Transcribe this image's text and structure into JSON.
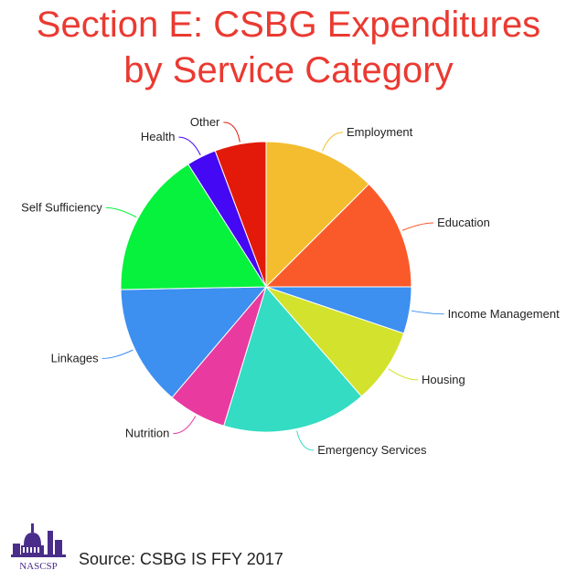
{
  "title_line1": "Section E: CSBG Expenditures",
  "title_line2": "by Service Category",
  "source": "Source: CSBG IS FFY 2017",
  "logo_text": "NASCSP",
  "chart_data": {
    "type": "pie",
    "start_angle_deg": 0,
    "direction": "clockwise",
    "slices": [
      {
        "label": "Employment",
        "value": 12.5,
        "color": "#f4bd2f"
      },
      {
        "label": "Education",
        "value": 12.5,
        "color": "#fa5a2a"
      },
      {
        "label": "Income Management",
        "value": 5.2,
        "color": "#3d8ff0"
      },
      {
        "label": "Housing",
        "value": 8.4,
        "color": "#d3e22c"
      },
      {
        "label": "Emergency Services",
        "value": 16.1,
        "color": "#33dcc2"
      },
      {
        "label": "Nutrition",
        "value": 6.5,
        "color": "#e93aa0"
      },
      {
        "label": "Linkages",
        "value": 13.5,
        "color": "#3d8ff0"
      },
      {
        "label": "Self Sufficiency",
        "value": 16.3,
        "color": "#06f23c"
      },
      {
        "label": "Health",
        "value": 3.3,
        "color": "#4408f5"
      },
      {
        "label": "Other",
        "value": 5.7,
        "color": "#e31a0a"
      }
    ]
  }
}
